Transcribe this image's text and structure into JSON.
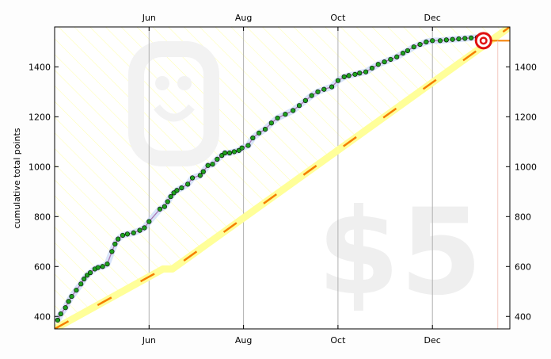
{
  "chart_data": {
    "type": "line",
    "title": "",
    "xlabel": "",
    "ylabel": "cumulative total points",
    "x_ticks": [
      "Jun",
      "Aug",
      "Oct",
      "Dec"
    ],
    "y_ticks": [
      400,
      600,
      800,
      1000,
      1200,
      1400
    ],
    "ylim": [
      350,
      1560
    ],
    "xlim": [
      "2013-04-01",
      "2014-01-20"
    ],
    "watermark_text": "$5",
    "grid": "vertical lines at month ticks",
    "colors": {
      "datapoint_green": "#1ea01e",
      "datapoint_blue": "#3b3bdc",
      "datapoint_orange": "#f5a000",
      "road_yellow": "#ffff99",
      "road_edge_orange": "#f57f00",
      "rose_line": "#e0506a",
      "moving_avg": "#8a8ad8",
      "bullseye_red": "#e01010"
    },
    "series": [
      {
        "kind": "datapoints",
        "x": [
          "2013-04-03",
          "2013-04-05",
          "2013-04-08",
          "2013-04-10",
          "2013-04-12",
          "2013-04-15",
          "2013-04-18",
          "2013-04-20",
          "2013-04-22",
          "2013-04-24",
          "2013-04-27",
          "2013-04-29",
          "2013-05-02",
          "2013-05-05",
          "2013-05-08",
          "2013-05-10",
          "2013-05-12",
          "2013-05-15",
          "2013-05-18",
          "2013-05-22",
          "2013-05-26",
          "2013-05-29",
          "2013-06-01",
          "2013-06-08",
          "2013-06-11",
          "2013-06-13",
          "2013-06-15",
          "2013-06-17",
          "2013-06-19",
          "2013-06-22",
          "2013-06-26",
          "2013-06-29",
          "2013-07-04",
          "2013-07-06",
          "2013-07-09",
          "2013-07-12",
          "2013-07-15",
          "2013-07-18",
          "2013-07-20",
          "2013-07-23",
          "2013-07-26",
          "2013-07-29",
          "2013-07-31",
          "2013-08-04",
          "2013-08-07",
          "2013-08-11",
          "2013-08-15",
          "2013-08-19",
          "2013-08-23",
          "2013-08-28",
          "2013-09-02",
          "2013-09-06",
          "2013-09-10",
          "2013-09-14",
          "2013-09-18",
          "2013-09-22",
          "2013-09-27",
          "2013-10-01",
          "2013-10-05",
          "2013-10-08",
          "2013-10-12",
          "2013-10-15",
          "2013-10-19",
          "2013-10-23",
          "2013-10-27",
          "2013-10-31",
          "2013-11-04",
          "2013-11-08",
          "2013-11-12",
          "2013-11-15",
          "2013-11-19",
          "2013-11-23",
          "2013-11-27",
          "2013-12-01",
          "2013-12-06",
          "2013-12-10",
          "2013-12-14",
          "2013-12-18",
          "2013-12-22",
          "2013-12-26",
          "2013-12-30",
          "2014-01-03"
        ],
        "y": [
          385,
          410,
          435,
          460,
          480,
          505,
          530,
          550,
          565,
          575,
          590,
          596,
          600,
          610,
          660,
          690,
          710,
          725,
          730,
          735,
          745,
          755,
          780,
          830,
          840,
          860,
          880,
          895,
          905,
          915,
          930,
          955,
          965,
          980,
          1005,
          1010,
          1030,
          1045,
          1055,
          1055,
          1060,
          1065,
          1075,
          1085,
          1115,
          1135,
          1150,
          1175,
          1195,
          1210,
          1225,
          1245,
          1265,
          1285,
          1300,
          1310,
          1320,
          1345,
          1360,
          1365,
          1370,
          1375,
          1380,
          1395,
          1410,
          1420,
          1430,
          1440,
          1455,
          1465,
          1480,
          1490,
          1500,
          1505,
          1505,
          1508,
          1510,
          1512,
          1514,
          1516,
          1518,
          1520
        ],
        "marker": "circle",
        "color": "#1ea01e"
      },
      {
        "kind": "road",
        "x": [
          "2013-04-01",
          "2013-06-10",
          "2013-06-16",
          "2014-01-20"
        ],
        "y": [
          350,
          590,
          590,
          1560
        ],
        "color": "#ffff99"
      },
      {
        "kind": "goal",
        "x": [
          "2014-01-03"
        ],
        "y": [
          1505
        ],
        "color": "#e01010"
      }
    ]
  }
}
